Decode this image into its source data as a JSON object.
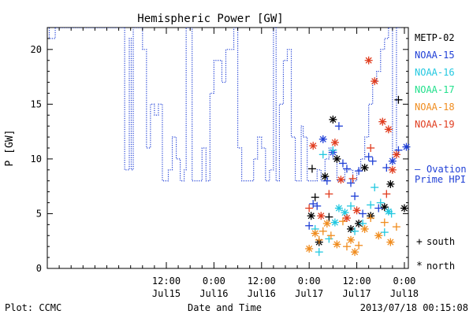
{
  "chart_data": {
    "type": "scatter",
    "title": "Hemispheric Power [GW]",
    "ylabel": "P [GW]",
    "xlabel": "Date and Time",
    "ylim": [
      0,
      22
    ],
    "xlim": [
      "2013-07-14T06:00",
      "2013-07-18T01:00"
    ],
    "grid": false,
    "legend_position": "right",
    "x_ticks": [
      {
        "x": "2013-07-15T12:00",
        "time": "12:00",
        "date": "Jul15"
      },
      {
        "x": "2013-07-16T00:00",
        "time": "0:00",
        "date": "Jul16"
      },
      {
        "x": "2013-07-16T12:00",
        "time": "12:00",
        "date": "Jul16"
      },
      {
        "x": "2013-07-17T00:00",
        "time": "0:00",
        "date": "Jul17"
      },
      {
        "x": "2013-07-17T12:00",
        "time": "12:00",
        "date": "Jul17"
      },
      {
        "x": "2013-07-18T00:00",
        "time": "0:00",
        "date": "Jul18"
      }
    ],
    "y_ticks": [
      0,
      5,
      10,
      15,
      20
    ],
    "ovation": {
      "label_line1": "Ovation",
      "label_line2": "Prime HPI",
      "color": "#1f3fd6",
      "points": [
        {
          "x": "2013-07-14T06:00",
          "y": 22
        },
        {
          "x": "2013-07-14T06:30",
          "y": 21
        },
        {
          "x": "2013-07-14T08:00",
          "y": 22
        },
        {
          "x": "2013-07-15T01:00",
          "y": 22
        },
        {
          "x": "2013-07-15T01:30",
          "y": 9
        },
        {
          "x": "2013-07-15T02:10",
          "y": 9
        },
        {
          "x": "2013-07-15T02:40",
          "y": 21
        },
        {
          "x": "2013-07-15T03:10",
          "y": 9
        },
        {
          "x": "2013-07-15T03:40",
          "y": 22
        },
        {
          "x": "2013-07-15T05:00",
          "y": 22
        },
        {
          "x": "2013-07-15T06:00",
          "y": 20
        },
        {
          "x": "2013-07-15T07:00",
          "y": 11
        },
        {
          "x": "2013-07-15T08:00",
          "y": 15
        },
        {
          "x": "2013-07-15T09:00",
          "y": 14
        },
        {
          "x": "2013-07-15T10:00",
          "y": 15
        },
        {
          "x": "2013-07-15T11:00",
          "y": 8
        },
        {
          "x": "2013-07-15T12:30",
          "y": 9
        },
        {
          "x": "2013-07-15T13:30",
          "y": 12
        },
        {
          "x": "2013-07-15T14:30",
          "y": 10
        },
        {
          "x": "2013-07-15T15:30",
          "y": 8
        },
        {
          "x": "2013-07-15T16:30",
          "y": 9
        },
        {
          "x": "2013-07-15T17:00",
          "y": 22
        },
        {
          "x": "2013-07-15T17:30",
          "y": 22
        },
        {
          "x": "2013-07-15T18:30",
          "y": 8
        },
        {
          "x": "2013-07-15T20:00",
          "y": 8
        },
        {
          "x": "2013-07-15T21:00",
          "y": 11
        },
        {
          "x": "2013-07-15T22:00",
          "y": 8
        },
        {
          "x": "2013-07-15T23:00",
          "y": 16
        },
        {
          "x": "2013-07-16T00:00",
          "y": 19
        },
        {
          "x": "2013-07-16T01:00",
          "y": 19
        },
        {
          "x": "2013-07-16T02:00",
          "y": 17
        },
        {
          "x": "2013-07-16T03:00",
          "y": 20
        },
        {
          "x": "2013-07-16T04:00",
          "y": 20
        },
        {
          "x": "2013-07-16T05:00",
          "y": 22
        },
        {
          "x": "2013-07-16T06:00",
          "y": 11
        },
        {
          "x": "2013-07-16T07:00",
          "y": 8
        },
        {
          "x": "2013-07-16T09:00",
          "y": 8
        },
        {
          "x": "2013-07-16T10:00",
          "y": 10
        },
        {
          "x": "2013-07-16T11:00",
          "y": 12
        },
        {
          "x": "2013-07-16T12:00",
          "y": 11
        },
        {
          "x": "2013-07-16T13:00",
          "y": 8
        },
        {
          "x": "2013-07-16T14:00",
          "y": 9
        },
        {
          "x": "2013-07-16T15:00",
          "y": 22
        },
        {
          "x": "2013-07-16T15:40",
          "y": 8
        },
        {
          "x": "2013-07-16T16:30",
          "y": 15
        },
        {
          "x": "2013-07-16T17:30",
          "y": 19
        },
        {
          "x": "2013-07-16T18:30",
          "y": 20
        },
        {
          "x": "2013-07-16T19:30",
          "y": 12
        },
        {
          "x": "2013-07-16T20:30",
          "y": 8
        },
        {
          "x": "2013-07-16T21:30",
          "y": 8
        },
        {
          "x": "2013-07-16T22:00",
          "y": 13
        },
        {
          "x": "2013-07-16T22:30",
          "y": 12
        },
        {
          "x": "2013-07-16T23:30",
          "y": 8
        },
        {
          "x": "2013-07-17T01:00",
          "y": 8
        },
        {
          "x": "2013-07-17T02:00",
          "y": 9
        },
        {
          "x": "2013-07-17T03:00",
          "y": 8
        },
        {
          "x": "2013-07-17T04:00",
          "y": 10
        },
        {
          "x": "2013-07-17T05:00",
          "y": 11
        },
        {
          "x": "2013-07-17T06:00",
          "y": 10
        },
        {
          "x": "2013-07-17T07:00",
          "y": 8
        },
        {
          "x": "2013-07-17T09:00",
          "y": 9
        },
        {
          "x": "2013-07-17T10:00",
          "y": 9
        },
        {
          "x": "2013-07-17T11:00",
          "y": 8
        },
        {
          "x": "2013-07-17T12:00",
          "y": 9
        },
        {
          "x": "2013-07-17T13:00",
          "y": 10
        },
        {
          "x": "2013-07-17T14:00",
          "y": 12
        },
        {
          "x": "2013-07-17T15:00",
          "y": 15
        },
        {
          "x": "2013-07-17T16:00",
          "y": 17
        },
        {
          "x": "2013-07-17T17:00",
          "y": 18
        },
        {
          "x": "2013-07-17T18:00",
          "y": 20
        },
        {
          "x": "2013-07-17T19:00",
          "y": 21
        },
        {
          "x": "2013-07-17T20:00",
          "y": 22
        },
        {
          "x": "2013-07-17T21:00",
          "y": 10
        },
        {
          "x": "2013-07-17T22:00",
          "y": 22
        },
        {
          "x": "2013-07-17T23:00",
          "y": 22
        }
      ]
    },
    "series": [
      {
        "name": "METP-02",
        "color": "#000000",
        "points": [
          {
            "x": "2013-07-17T00:30",
            "y": 4.8,
            "marker": "north"
          },
          {
            "x": "2013-07-17T01:30",
            "y": 6.5,
            "marker": "south"
          },
          {
            "x": "2013-07-17T02:30",
            "y": 2.4,
            "marker": "north"
          },
          {
            "x": "2013-07-17T04:00",
            "y": 8.4,
            "marker": "north"
          },
          {
            "x": "2013-07-17T05:00",
            "y": 4.7,
            "marker": "south"
          },
          {
            "x": "2013-07-17T06:00",
            "y": 13.6,
            "marker": "north"
          },
          {
            "x": "2013-07-17T07:00",
            "y": 10.0,
            "marker": "north"
          },
          {
            "x": "2013-07-17T10:30",
            "y": 3.6,
            "marker": "north"
          },
          {
            "x": "2013-07-17T12:30",
            "y": 4.1,
            "marker": "north"
          },
          {
            "x": "2013-07-17T14:00",
            "y": 9.2,
            "marker": "north"
          },
          {
            "x": "2013-07-17T15:30",
            "y": 4.8,
            "marker": "north"
          },
          {
            "x": "2013-07-17T19:00",
            "y": 5.6,
            "marker": "north"
          },
          {
            "x": "2013-07-17T20:30",
            "y": 7.7,
            "marker": "north"
          },
          {
            "x": "2013-07-17T22:30",
            "y": 15.4,
            "marker": "south"
          },
          {
            "x": "2013-07-18T00:00",
            "y": 5.5,
            "marker": "north"
          },
          {
            "x": "2013-07-17T00:45",
            "y": 9.1,
            "marker": "south"
          }
        ]
      },
      {
        "name": "NOAA-15",
        "color": "#1f3fd6",
        "points": [
          {
            "x": "2013-07-17T00:00",
            "y": 3.9,
            "marker": "south"
          },
          {
            "x": "2013-07-17T01:00",
            "y": 5.9,
            "marker": "south"
          },
          {
            "x": "2013-07-17T02:00",
            "y": 5.7,
            "marker": "south"
          },
          {
            "x": "2013-07-17T03:30",
            "y": 11.8,
            "marker": "north"
          },
          {
            "x": "2013-07-17T04:30",
            "y": 8.0,
            "marker": "south"
          },
          {
            "x": "2013-07-17T06:00",
            "y": 10.6,
            "marker": "north"
          },
          {
            "x": "2013-07-17T07:30",
            "y": 13.0,
            "marker": "south"
          },
          {
            "x": "2013-07-17T08:30",
            "y": 9.6,
            "marker": "south"
          },
          {
            "x": "2013-07-17T09:30",
            "y": 9.1,
            "marker": "south"
          },
          {
            "x": "2013-07-17T10:30",
            "y": 7.8,
            "marker": "south"
          },
          {
            "x": "2013-07-17T11:30",
            "y": 6.6,
            "marker": "south"
          },
          {
            "x": "2013-07-17T12:30",
            "y": 8.9,
            "marker": "south"
          },
          {
            "x": "2013-07-17T13:30",
            "y": 5.0,
            "marker": "south"
          },
          {
            "x": "2013-07-17T15:00",
            "y": 10.2,
            "marker": "south"
          },
          {
            "x": "2013-07-17T16:00",
            "y": 9.8,
            "marker": "south"
          },
          {
            "x": "2013-07-17T17:30",
            "y": 5.5,
            "marker": "south"
          },
          {
            "x": "2013-07-17T19:30",
            "y": 9.2,
            "marker": "south"
          },
          {
            "x": "2013-07-17T21:00",
            "y": 9.8,
            "marker": "north"
          },
          {
            "x": "2013-07-17T22:30",
            "y": 10.8,
            "marker": "south"
          },
          {
            "x": "2013-07-18T00:30",
            "y": 11.1,
            "marker": "north"
          }
        ]
      },
      {
        "name": "NOAA-16",
        "color": "#22c8e0",
        "points": [
          {
            "x": "2013-07-17T01:30",
            "y": 3.6,
            "marker": "south"
          },
          {
            "x": "2013-07-17T02:30",
            "y": 1.5,
            "marker": "south"
          },
          {
            "x": "2013-07-17T03:30",
            "y": 10.4,
            "marker": "south"
          },
          {
            "x": "2013-07-17T05:00",
            "y": 2.7,
            "marker": "south"
          },
          {
            "x": "2013-07-17T06:00",
            "y": 10.8,
            "marker": "south"
          },
          {
            "x": "2013-07-17T06:30",
            "y": 4.2,
            "marker": "north"
          },
          {
            "x": "2013-07-17T07:30",
            "y": 5.5,
            "marker": "north"
          },
          {
            "x": "2013-07-17T09:00",
            "y": 5.1,
            "marker": "north"
          },
          {
            "x": "2013-07-17T10:30",
            "y": 5.7,
            "marker": "south"
          },
          {
            "x": "2013-07-17T11:30",
            "y": 3.4,
            "marker": "south"
          },
          {
            "x": "2013-07-17T13:30",
            "y": 4.1,
            "marker": "south"
          },
          {
            "x": "2013-07-17T15:30",
            "y": 5.8,
            "marker": "south"
          },
          {
            "x": "2013-07-17T16:30",
            "y": 7.4,
            "marker": "south"
          },
          {
            "x": "2013-07-17T18:00",
            "y": 6.0,
            "marker": "south"
          },
          {
            "x": "2013-07-17T19:00",
            "y": 3.3,
            "marker": "south"
          },
          {
            "x": "2013-07-17T20:00",
            "y": 5.2,
            "marker": "north"
          },
          {
            "x": "2013-07-17T20:45",
            "y": 5.0,
            "marker": "south"
          }
        ]
      },
      {
        "name": "NOAA-17",
        "color": "#22e08c",
        "points": []
      },
      {
        "name": "NOAA-18",
        "color": "#f08c1e",
        "points": [
          {
            "x": "2013-07-17T00:00",
            "y": 1.8,
            "marker": "north"
          },
          {
            "x": "2013-07-17T01:30",
            "y": 3.2,
            "marker": "north"
          },
          {
            "x": "2013-07-17T02:30",
            "y": 2.6,
            "marker": "south"
          },
          {
            "x": "2013-07-17T03:30",
            "y": 3.4,
            "marker": "south"
          },
          {
            "x": "2013-07-17T04:30",
            "y": 4.1,
            "marker": "north"
          },
          {
            "x": "2013-07-17T05:30",
            "y": 3.0,
            "marker": "south"
          },
          {
            "x": "2013-07-17T07:00",
            "y": 2.2,
            "marker": "north"
          },
          {
            "x": "2013-07-17T08:30",
            "y": 4.3,
            "marker": "south"
          },
          {
            "x": "2013-07-17T09:30",
            "y": 2.0,
            "marker": "south"
          },
          {
            "x": "2013-07-17T10:30",
            "y": 2.6,
            "marker": "north"
          },
          {
            "x": "2013-07-17T11:30",
            "y": 1.5,
            "marker": "north"
          },
          {
            "x": "2013-07-17T12:30",
            "y": 2.1,
            "marker": "south"
          },
          {
            "x": "2013-07-17T14:00",
            "y": 3.6,
            "marker": "north"
          },
          {
            "x": "2013-07-17T15:30",
            "y": 4.6,
            "marker": "south"
          },
          {
            "x": "2013-07-17T17:30",
            "y": 3.0,
            "marker": "north"
          },
          {
            "x": "2013-07-17T19:00",
            "y": 4.2,
            "marker": "south"
          },
          {
            "x": "2013-07-17T20:30",
            "y": 2.4,
            "marker": "north"
          },
          {
            "x": "2013-07-17T22:00",
            "y": 3.8,
            "marker": "south"
          }
        ]
      },
      {
        "name": "NOAA-19",
        "color": "#e03c1e",
        "points": [
          {
            "x": "2013-07-17T00:00",
            "y": 5.5,
            "marker": "south"
          },
          {
            "x": "2013-07-17T01:00",
            "y": 11.2,
            "marker": "north"
          },
          {
            "x": "2013-07-17T03:00",
            "y": 4.8,
            "marker": "north"
          },
          {
            "x": "2013-07-17T05:00",
            "y": 6.8,
            "marker": "south"
          },
          {
            "x": "2013-07-17T06:30",
            "y": 11.5,
            "marker": "north"
          },
          {
            "x": "2013-07-17T08:00",
            "y": 8.1,
            "marker": "north"
          },
          {
            "x": "2013-07-17T09:30",
            "y": 4.6,
            "marker": "north"
          },
          {
            "x": "2013-07-17T11:00",
            "y": 8.2,
            "marker": "south"
          },
          {
            "x": "2013-07-17T12:00",
            "y": 5.3,
            "marker": "north"
          },
          {
            "x": "2013-07-17T15:00",
            "y": 19.0,
            "marker": "north"
          },
          {
            "x": "2013-07-17T16:30",
            "y": 17.1,
            "marker": "north"
          },
          {
            "x": "2013-07-17T15:30",
            "y": 11.0,
            "marker": "south"
          },
          {
            "x": "2013-07-17T18:30",
            "y": 13.4,
            "marker": "north"
          },
          {
            "x": "2013-07-17T20:00",
            "y": 12.7,
            "marker": "north"
          },
          {
            "x": "2013-07-17T21:00",
            "y": 9.0,
            "marker": "north"
          },
          {
            "x": "2013-07-17T22:00",
            "y": 10.4,
            "marker": "north"
          },
          {
            "x": "2013-07-17T19:30",
            "y": 6.8,
            "marker": "south"
          }
        ]
      }
    ],
    "marker_legend": {
      "south": "south",
      "north": "north"
    }
  },
  "footer": {
    "plot_source": "Plot: CCMC",
    "timestamp": "2013/07/18 00:15:08"
  }
}
